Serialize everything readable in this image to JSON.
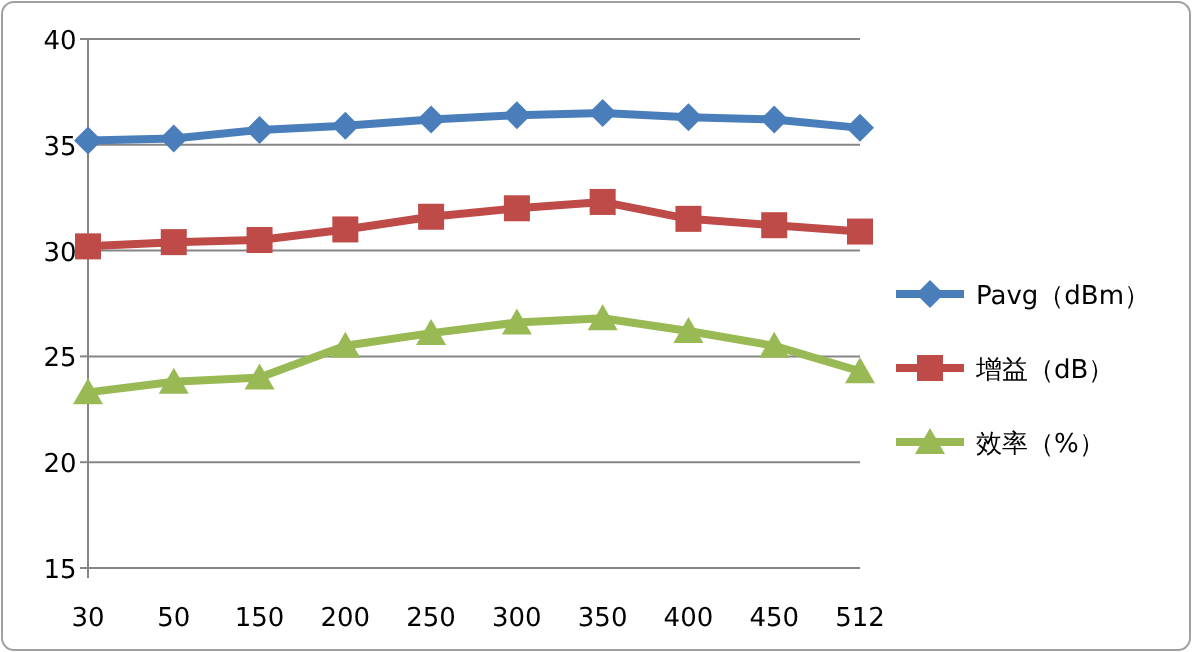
{
  "chart_data": {
    "type": "line",
    "categories": [
      "30",
      "50",
      "150",
      "200",
      "250",
      "300",
      "350",
      "400",
      "450",
      "512"
    ],
    "ylim": [
      15,
      40
    ],
    "yticks": [
      15,
      20,
      25,
      30,
      35,
      40
    ],
    "grid": "y",
    "legend": "right",
    "series": [
      {
        "name": "Pavg（dBm）",
        "color": "#4a7ebb",
        "marker": "diamond",
        "values": [
          35.2,
          35.3,
          35.7,
          35.9,
          36.2,
          36.4,
          36.5,
          36.3,
          36.2,
          35.8
        ]
      },
      {
        "name": "增益（dB）",
        "color": "#be4b48",
        "marker": "square",
        "values": [
          30.2,
          30.4,
          30.5,
          31.0,
          31.6,
          32.0,
          32.3,
          31.5,
          31.2,
          30.9
        ]
      },
      {
        "name": "效率（%）",
        "color": "#98b954",
        "marker": "triangle",
        "values": [
          23.3,
          23.8,
          24.0,
          25.5,
          26.1,
          26.6,
          26.8,
          26.2,
          25.5,
          24.3
        ]
      }
    ]
  }
}
